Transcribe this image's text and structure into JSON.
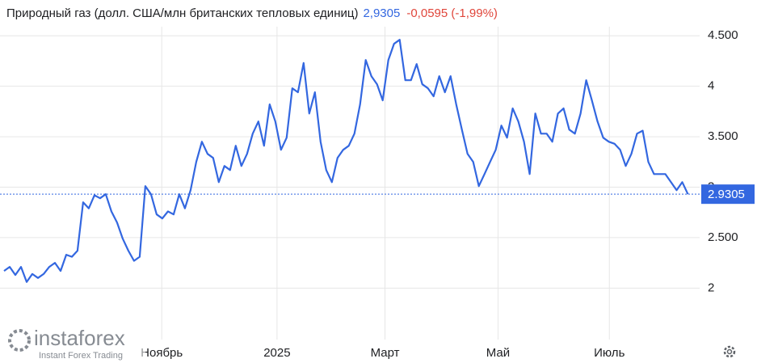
{
  "chart_data": {
    "type": "line",
    "title": "Природный газ (долл. США/млн британских тепловых единиц)",
    "price": "2,9305",
    "change": "-0,0595 (-1,99%)",
    "last_value": 2.9305,
    "watermark": {
      "brand": "instaforex",
      "tagline": "Instant Forex Trading"
    },
    "color": "#3367e0",
    "grid": true,
    "ylim": [
      1.49,
      4.59
    ],
    "yticks": [
      2,
      {
        "value": 2.5,
        "label": "2.500"
      },
      3,
      {
        "value": 3.5,
        "label": "3.500"
      },
      4,
      {
        "value": 4.5,
        "label": "4.500"
      }
    ],
    "xlim": [
      0,
      121.5
    ],
    "xticks": [
      {
        "value": 27.9,
        "label": "Ноябрь"
      },
      {
        "value": 48.3,
        "label": "2025"
      },
      {
        "value": 67.4,
        "label": "Март"
      },
      {
        "value": 87.4,
        "label": "Май"
      },
      {
        "value": 107.1,
        "label": "Июль"
      }
    ],
    "values": [
      2.17,
      2.21,
      2.13,
      2.21,
      2.06,
      2.14,
      2.1,
      2.14,
      2.21,
      2.25,
      2.17,
      2.33,
      2.31,
      2.37,
      2.85,
      2.79,
      2.92,
      2.89,
      2.93,
      2.76,
      2.65,
      2.49,
      2.37,
      2.27,
      2.31,
      3.01,
      2.93,
      2.73,
      2.69,
      2.76,
      2.73,
      2.93,
      2.79,
      2.97,
      3.25,
      3.45,
      3.33,
      3.29,
      3.05,
      3.21,
      3.17,
      3.41,
      3.21,
      3.33,
      3.53,
      3.65,
      3.41,
      3.82,
      3.65,
      3.37,
      3.49,
      3.98,
      3.94,
      4.23,
      3.73,
      3.94,
      3.45,
      3.17,
      3.05,
      3.29,
      3.37,
      3.41,
      3.53,
      3.82,
      4.26,
      4.1,
      4.02,
      3.86,
      4.26,
      4.42,
      4.46,
      4.06,
      4.06,
      4.22,
      4.02,
      3.98,
      3.9,
      4.1,
      3.94,
      4.1,
      3.82,
      3.57,
      3.33,
      3.25,
      3.01,
      3.13,
      3.25,
      3.37,
      3.61,
      3.49,
      3.78,
      3.65,
      3.45,
      3.13,
      3.73,
      3.53,
      3.53,
      3.45,
      3.73,
      3.78,
      3.57,
      3.53,
      3.73,
      4.06,
      3.86,
      3.65,
      3.49,
      3.45,
      3.43,
      3.37,
      3.21,
      3.33,
      3.53,
      3.56,
      3.25,
      3.13,
      3.13,
      3.13,
      3.05,
      2.97,
      3.05,
      2.9305
    ]
  }
}
